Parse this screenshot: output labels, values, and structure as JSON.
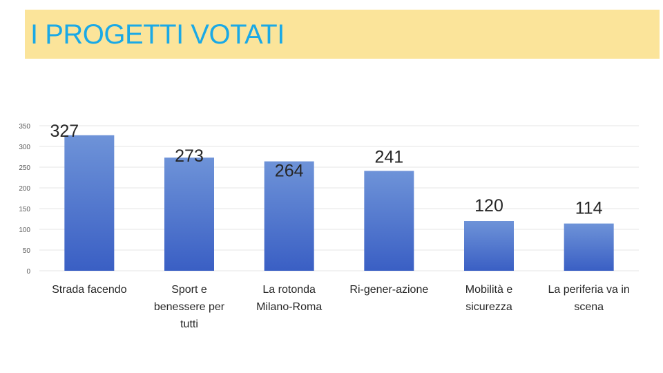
{
  "header": {
    "title": "I PROGETTI VOTATI"
  },
  "colors": {
    "title": "#1aa9e6",
    "band": "#fbe49a",
    "bar_top": "#6e93d8",
    "bar_bottom": "#3a5fc4"
  },
  "chart_data": {
    "type": "bar",
    "title": "I PROGETTI VOTATI",
    "xlabel": "",
    "ylabel": "",
    "ylim": [
      0,
      350
    ],
    "yticks": [
      0,
      50,
      100,
      150,
      200,
      250,
      300,
      350
    ],
    "grid": true,
    "categories": [
      [
        "Strada facendo"
      ],
      [
        "Sport e",
        "benessere per",
        "tutti"
      ],
      [
        "La rotonda",
        "Milano-Roma"
      ],
      [
        "Ri-gener-azione"
      ],
      [
        "Mobilità e",
        "sicurezza"
      ],
      [
        "La periferia va in",
        "scena"
      ]
    ],
    "values": [
      327,
      273,
      264,
      241,
      120,
      114
    ]
  }
}
